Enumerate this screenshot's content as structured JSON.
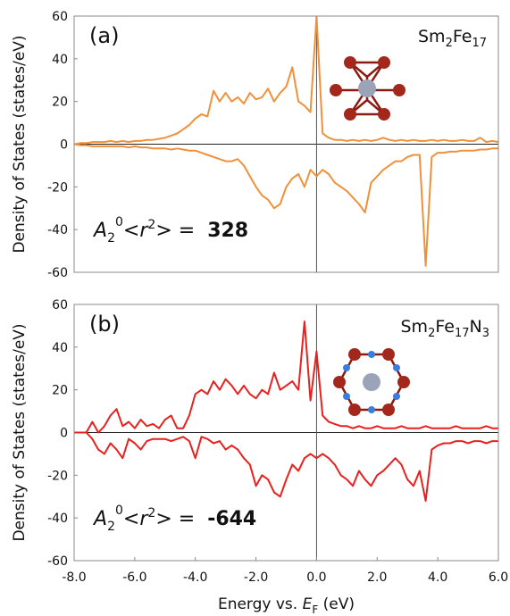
{
  "chart_data": [
    {
      "type": "line",
      "panel_label": "(a)",
      "formula": [
        "Sm",
        "2",
        "Fe",
        "17"
      ],
      "annotation": [
        "A",
        "2",
        "0",
        "<",
        "r",
        "2",
        ">  =",
        "328"
      ],
      "ylabel": "Density of States (states/eV)",
      "x": [
        -8.0,
        -7.8,
        -7.6,
        -7.4,
        -7.2,
        -7.0,
        -6.8,
        -6.6,
        -6.4,
        -6.2,
        -6.0,
        -5.8,
        -5.6,
        -5.4,
        -5.2,
        -5.0,
        -4.8,
        -4.6,
        -4.4,
        -4.2,
        -4.0,
        -3.8,
        -3.6,
        -3.4,
        -3.2,
        -3.0,
        -2.8,
        -2.6,
        -2.4,
        -2.2,
        -2.0,
        -1.8,
        -1.6,
        -1.4,
        -1.2,
        -1.0,
        -0.8,
        -0.6,
        -0.4,
        -0.2,
        0.0,
        0.2,
        0.4,
        0.6,
        0.8,
        1.0,
        1.2,
        1.4,
        1.6,
        1.8,
        2.0,
        2.2,
        2.4,
        2.6,
        2.8,
        3.0,
        3.2,
        3.4,
        3.6,
        3.8,
        4.0,
        4.2,
        4.4,
        4.6,
        4.8,
        5.0,
        5.2,
        5.4,
        5.6,
        5.8,
        6.0
      ],
      "series": [
        {
          "color": "#f0913a",
          "values": [
            0,
            0.5,
            0.5,
            1,
            1,
            1,
            1.5,
            1,
            1.5,
            1,
            1.5,
            1.5,
            2,
            2,
            2.5,
            3,
            4,
            5,
            7,
            9,
            12,
            14,
            13,
            25,
            20,
            24,
            20,
            22,
            19,
            24,
            21,
            22,
            26,
            20,
            24,
            27,
            36,
            20,
            18,
            15,
            60,
            5,
            3,
            2,
            2,
            1.5,
            2,
            1.5,
            2,
            1.5,
            2,
            3,
            2,
            1.5,
            2,
            1.5,
            2,
            1.5,
            1.5,
            2,
            1.5,
            2,
            1.5,
            1.5,
            2,
            1.5,
            1.5,
            3,
            1,
            1.5,
            1
          ]
        },
        {
          "color": "#f0913a",
          "values": [
            0,
            -0.5,
            -0.5,
            -1,
            -1,
            -1,
            -1,
            -1,
            -1,
            -1.5,
            -1,
            -1.5,
            -1.5,
            -2,
            -2,
            -2,
            -2.5,
            -2,
            -2.5,
            -3,
            -3,
            -4,
            -5,
            -6,
            -7,
            -8,
            -8,
            -7,
            -10,
            -15,
            -20,
            -24,
            -26,
            -30,
            -28,
            -20,
            -16,
            -14,
            -20,
            -12,
            -15,
            -12,
            -14,
            -18,
            -20,
            -22,
            -25,
            -28,
            -32,
            -18,
            -15,
            -12,
            -10,
            -8,
            -8,
            -6,
            -5,
            -5,
            -57,
            -6,
            -4,
            -4,
            -3.5,
            -3.5,
            -3,
            -3,
            -3,
            -2.5,
            -2.5,
            -2,
            -2
          ]
        }
      ],
      "xlim": [
        -8,
        6
      ],
      "ylim": [
        -60,
        60
      ],
      "yticks": [
        -60,
        -40,
        -20,
        0,
        20,
        40,
        60
      ]
    },
    {
      "type": "line",
      "panel_label": "(b)",
      "formula": [
        "Sm",
        "2",
        "Fe",
        "17",
        "N",
        "3"
      ],
      "annotation": [
        "A",
        "2",
        "0",
        "<",
        "r",
        "2",
        ">  =",
        "-644"
      ],
      "ylabel": "Density of States (states/eV)",
      "xlabel": [
        "Energy vs. ",
        "E",
        "F",
        " (eV)"
      ],
      "x": [
        -8.0,
        -7.8,
        -7.6,
        -7.4,
        -7.2,
        -7.0,
        -6.8,
        -6.6,
        -6.4,
        -6.2,
        -6.0,
        -5.8,
        -5.6,
        -5.4,
        -5.2,
        -5.0,
        -4.8,
        -4.6,
        -4.4,
        -4.2,
        -4.0,
        -3.8,
        -3.6,
        -3.4,
        -3.2,
        -3.0,
        -2.8,
        -2.6,
        -2.4,
        -2.2,
        -2.0,
        -1.8,
        -1.6,
        -1.4,
        -1.2,
        -1.0,
        -0.8,
        -0.6,
        -0.4,
        -0.2,
        0.0,
        0.2,
        0.4,
        0.6,
        0.8,
        1.0,
        1.2,
        1.4,
        1.6,
        1.8,
        2.0,
        2.2,
        2.4,
        2.6,
        2.8,
        3.0,
        3.2,
        3.4,
        3.6,
        3.8,
        4.0,
        4.2,
        4.4,
        4.6,
        4.8,
        5.0,
        5.2,
        5.4,
        5.6,
        5.8,
        6.0
      ],
      "series": [
        {
          "color": "#e8201e",
          "values": [
            0,
            0,
            0,
            5,
            0,
            3,
            8,
            11,
            3,
            5,
            2,
            6,
            3,
            4,
            2,
            6,
            8,
            2,
            2,
            8,
            18,
            20,
            18,
            24,
            20,
            25,
            22,
            18,
            22,
            18,
            16,
            20,
            18,
            28,
            20,
            22,
            24,
            20,
            52,
            15,
            38,
            8,
            5,
            4,
            3,
            3,
            2,
            3,
            2,
            2,
            3,
            2,
            2,
            2,
            3,
            2,
            2,
            2,
            3,
            2,
            2,
            2,
            2,
            3,
            2,
            2,
            2,
            2,
            3,
            2,
            2
          ]
        },
        {
          "color": "#e8201e",
          "values": [
            0,
            0,
            0,
            -3,
            -8,
            -10,
            -5,
            -8,
            -12,
            -3,
            -5,
            -8,
            -4,
            -3,
            -3,
            -3,
            -4,
            -3,
            -2,
            -4,
            -12,
            -2,
            -3,
            -5,
            -4,
            -8,
            -6,
            -8,
            -12,
            -15,
            -25,
            -20,
            -22,
            -28,
            -30,
            -22,
            -15,
            -18,
            -12,
            -10,
            -12,
            -10,
            -12,
            -15,
            -20,
            -22,
            -25,
            -18,
            -22,
            -25,
            -20,
            -18,
            -15,
            -12,
            -15,
            -22,
            -25,
            -18,
            -32,
            -8,
            -6,
            -5,
            -5,
            -4,
            -4,
            -5,
            -4,
            -4,
            -5,
            -4,
            -4
          ]
        }
      ],
      "xlim": [
        -8,
        6
      ],
      "ylim": [
        -60,
        60
      ],
      "yticks": [
        -60,
        -40,
        -20,
        0,
        20,
        40,
        60
      ],
      "xticks": [
        {
          "value": -8,
          "label": "-8.0"
        },
        {
          "value": -6,
          "label": "-6.0"
        },
        {
          "value": -4,
          "label": "-4.0"
        },
        {
          "value": -2,
          "label": "-2.0"
        },
        {
          "value": 0,
          "label": "0.0"
        },
        {
          "value": 2,
          "label": "2.0"
        },
        {
          "value": 4,
          "label": "4.0"
        },
        {
          "value": 6,
          "label": "6.0"
        }
      ]
    }
  ]
}
